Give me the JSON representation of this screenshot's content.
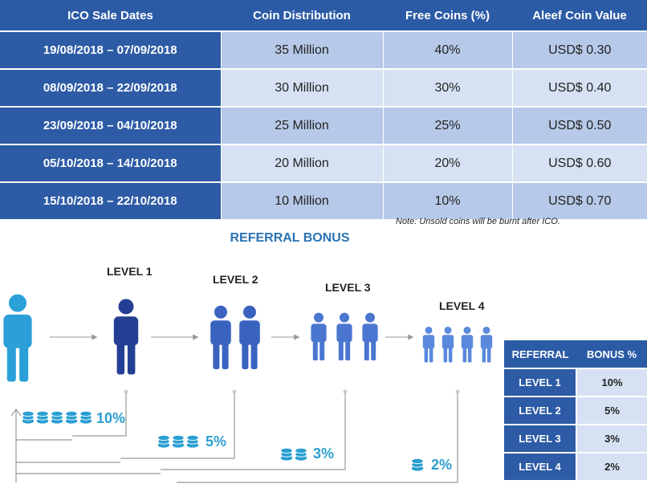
{
  "ico_table": {
    "headers": [
      "ICO Sale Dates",
      "Coin Distribution",
      "Free Coins (%)",
      "Aleef Coin Value"
    ],
    "rows": [
      [
        "19/08/2018 – 07/09/2018",
        "35 Million",
        "40%",
        "USD$ 0.30"
      ],
      [
        "08/09/2018 – 22/09/2018",
        "30 Million",
        "30%",
        "USD$ 0.40"
      ],
      [
        "23/09/2018 – 04/10/2018",
        "25 Million",
        "25%",
        "USD$ 0.50"
      ],
      [
        "05/10/2018 – 14/10/2018",
        "20 Million",
        "20%",
        "USD$ 0.60"
      ],
      [
        "15/10/2018 – 22/10/2018",
        "10 Million",
        "10%",
        "USD$ 0.70"
      ]
    ]
  },
  "note": "Note: Unsold coins will be burnt after ICO.",
  "referral_title": "REFERRAL BONUS",
  "levels": [
    "LEVEL 1",
    "LEVEL 2",
    "LEVEL 3",
    "LEVEL 4"
  ],
  "percentages": [
    "10%",
    "5%",
    "3%",
    "2%"
  ],
  "referral_table": {
    "headers": [
      "REFERRAL",
      "BONUS %"
    ],
    "rows": [
      [
        "LEVEL 1",
        "10%"
      ],
      [
        "LEVEL 2",
        "5%"
      ],
      [
        "LEVEL 3",
        "3%"
      ],
      [
        "LEVEL 4",
        "2%"
      ]
    ]
  },
  "colors": {
    "header_blue": "#2c5ba6",
    "cell_light": "#d6e2f3",
    "cell_mid": "#b6c9e8",
    "person_root": "#2a9fd8",
    "person_l1": "#233f94",
    "person_l2": "#3a63c0",
    "person_l3": "#4a76cf",
    "person_l4": "#5a89dd",
    "percent_text": "#2a9fd1"
  },
  "icons": [
    "person-icon",
    "coin-stack-icon",
    "arrow-right-icon"
  ]
}
